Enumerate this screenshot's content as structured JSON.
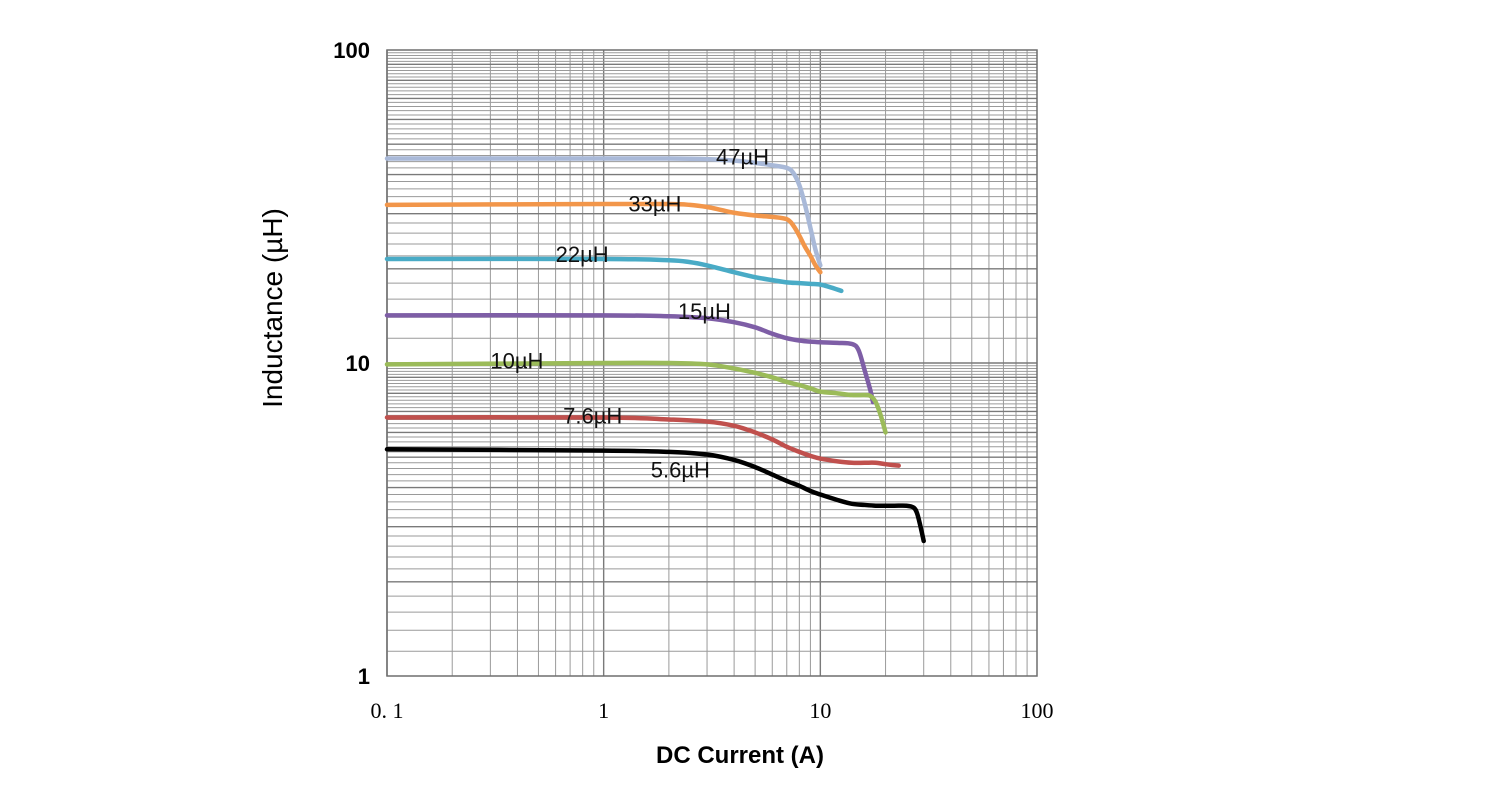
{
  "chart_data": {
    "type": "line",
    "title": "",
    "xlabel": "DC Current (A)",
    "ylabel": "Inductance (µH)",
    "x_scale": "log",
    "y_scale": "log",
    "xlim": [
      0.1,
      100
    ],
    "ylim": [
      1,
      100
    ],
    "grid": true,
    "x_ticks": [
      "0. 1",
      "1",
      "10",
      "100"
    ],
    "x_tick_values": [
      0.1,
      1,
      10,
      100
    ],
    "y_ticks": [
      "1",
      "10",
      "100"
    ],
    "y_tick_values": [
      1,
      10,
      100
    ],
    "series": [
      {
        "name": "47µH",
        "color": "#a9b9d8",
        "label_at": [
          3.3,
          43
        ],
        "x": [
          0.1,
          1,
          2,
          3,
          4,
          5,
          6,
          7,
          7.5,
          8,
          8.5,
          9,
          9.5,
          10
        ],
        "y": [
          45,
          45,
          45,
          44.8,
          44.3,
          43.6,
          42.8,
          42,
          40.5,
          37,
          32,
          27,
          23,
          20.5
        ]
      },
      {
        "name": "33µH",
        "color": "#f2964a",
        "label_at": [
          1.3,
          30.5
        ],
        "x": [
          0.1,
          1,
          2,
          2.5,
          3,
          3.5,
          4,
          5,
          6,
          7,
          7.5,
          8,
          8.5,
          9,
          9.5,
          10
        ],
        "y": [
          32,
          32.2,
          32.2,
          32,
          31.5,
          30.8,
          30.2,
          29.6,
          29.3,
          28.8,
          27.5,
          25.5,
          23.5,
          22,
          20.5,
          19.5
        ]
      },
      {
        "name": "22µH",
        "color": "#49abc6",
        "label_at": [
          0.6,
          21
        ],
        "x": [
          0.1,
          1,
          2,
          2.5,
          3,
          4,
          5,
          6,
          7,
          8,
          9,
          10,
          11,
          12.5
        ],
        "y": [
          21.5,
          21.5,
          21.3,
          21,
          20.5,
          19.5,
          18.8,
          18.4,
          18.1,
          18,
          17.9,
          17.8,
          17.5,
          17
        ]
      },
      {
        "name": "15µH",
        "color": "#7e5ea6",
        "label_at": [
          2.2,
          13.8
        ],
        "x": [
          0.1,
          1,
          2,
          3,
          4,
          5,
          6,
          7,
          8,
          9,
          10,
          12,
          14,
          15,
          16,
          17,
          17.5
        ],
        "y": [
          14.2,
          14.2,
          14.1,
          13.9,
          13.5,
          13,
          12.4,
          12,
          11.8,
          11.7,
          11.65,
          11.6,
          11.5,
          11,
          9.5,
          8.2,
          7.5
        ]
      },
      {
        "name": "10µH",
        "color": "#9bbb59",
        "label_at": [
          0.3,
          9.6
        ],
        "x": [
          0.1,
          1,
          2,
          3,
          4,
          5,
          6,
          7,
          8,
          9,
          10,
          12,
          14,
          16,
          17,
          18,
          19,
          20
        ],
        "y": [
          9.9,
          10,
          10,
          9.9,
          9.6,
          9.3,
          9,
          8.7,
          8.5,
          8.3,
          8.1,
          8,
          7.9,
          7.9,
          7.85,
          7.5,
          6.8,
          6
        ]
      },
      {
        "name": "7.6µH",
        "color": "#c0504d",
        "label_at": [
          0.65,
          6.4
        ],
        "x": [
          0.1,
          1,
          2,
          3,
          4,
          5,
          6,
          7,
          8,
          9,
          10,
          12,
          14,
          16,
          18,
          20,
          23
        ],
        "y": [
          6.7,
          6.7,
          6.6,
          6.5,
          6.3,
          6,
          5.7,
          5.4,
          5.2,
          5.05,
          4.95,
          4.85,
          4.8,
          4.8,
          4.8,
          4.75,
          4.7
        ]
      },
      {
        "name": "5.6µH",
        "color": "#000000",
        "label_at": [
          1.65,
          4.3
        ],
        "x": [
          0.1,
          1,
          2,
          3,
          4,
          5,
          6,
          7,
          8,
          9,
          10,
          12,
          14,
          16,
          18,
          20,
          22,
          25,
          27,
          28,
          29,
          30
        ],
        "y": [
          5.3,
          5.25,
          5.2,
          5.1,
          4.9,
          4.65,
          4.4,
          4.2,
          4.05,
          3.9,
          3.8,
          3.65,
          3.55,
          3.52,
          3.5,
          3.5,
          3.5,
          3.5,
          3.45,
          3.3,
          3,
          2.7
        ]
      }
    ]
  }
}
